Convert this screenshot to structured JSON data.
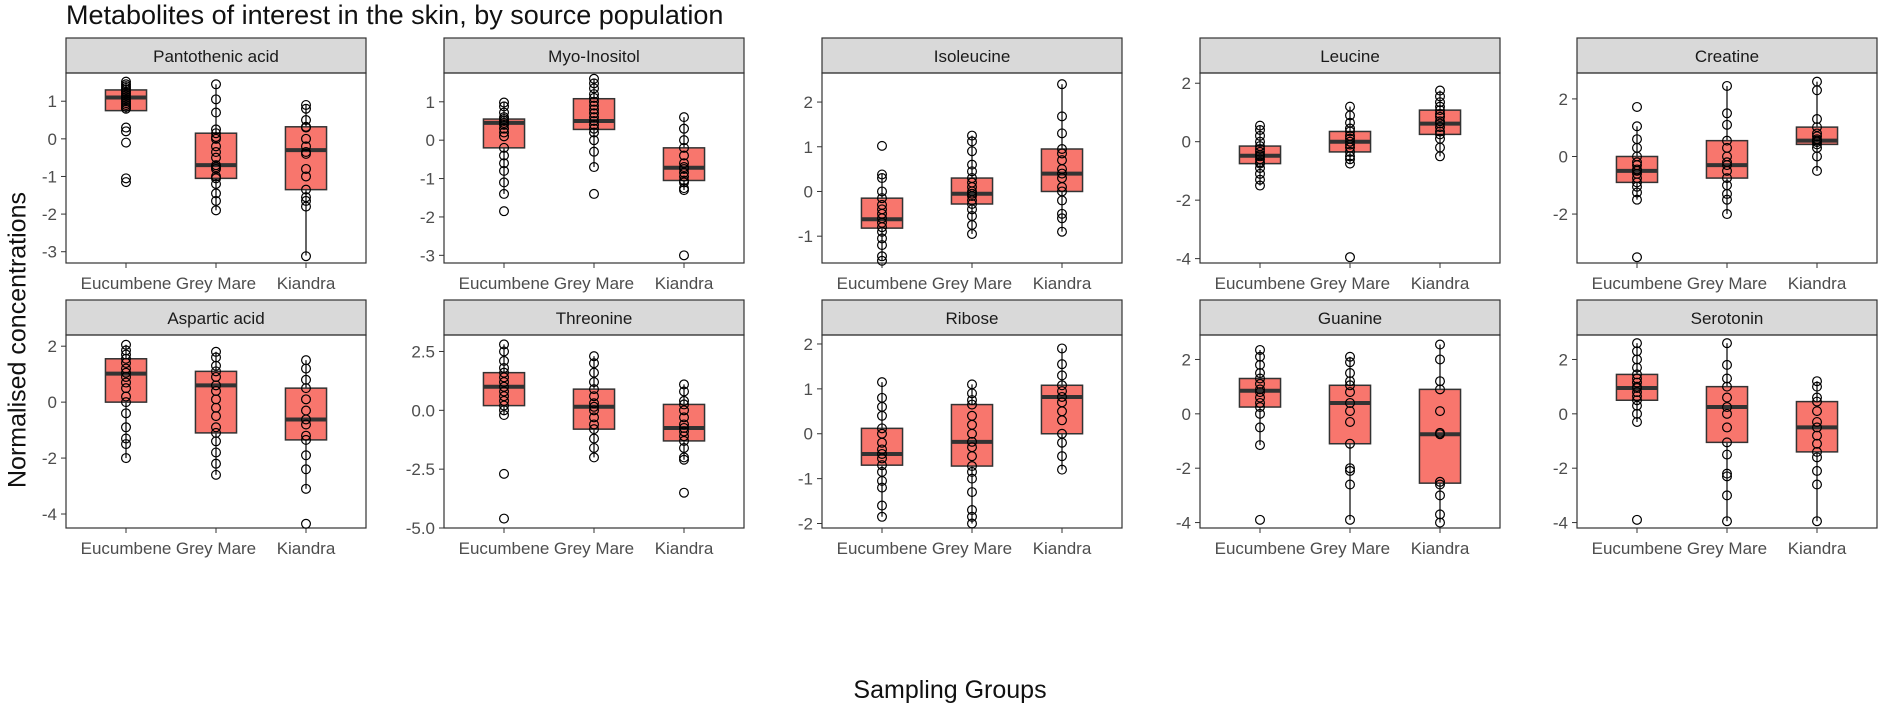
{
  "title": "Metabolites of interest in the skin, by source population",
  "xlabel": "Sampling Groups",
  "ylabel": "Normalised concentrations",
  "colors": {
    "box_fill": "#F8766D",
    "strip_fill": "#D9D9D9",
    "line": "#333333"
  },
  "chart_data": {
    "type": "boxplot",
    "categories": [
      "Eucumbene",
      "Grey Mare",
      "Kiandra"
    ],
    "panels": [
      {
        "name": "Pantothenic acid",
        "ylim": [
          -3.3,
          1.75
        ],
        "yticks": [
          -3,
          -2,
          -1,
          0,
          1
        ],
        "ytick_labels": [
          "-3",
          "-2",
          "-1",
          "0",
          "1"
        ],
        "groups": [
          {
            "q1": 0.75,
            "median": 1.1,
            "q3": 1.3,
            "lo": 0.7,
            "hi": 1.5,
            "points": [
              1.52,
              1.45,
              1.4,
              1.35,
              1.3,
              1.25,
              1.2,
              1.15,
              1.1,
              1.05,
              1.0,
              0.95,
              0.9,
              0.85,
              0.8,
              0.3,
              0.2,
              -0.1,
              -1.05,
              -1.15
            ]
          },
          {
            "q1": -1.05,
            "median": -0.7,
            "q3": 0.15,
            "lo": -1.9,
            "hi": 1.45,
            "points": [
              1.45,
              1.05,
              0.7,
              0.25,
              0.15,
              0.05,
              0.0,
              -0.2,
              -0.35,
              -0.5,
              -0.7,
              -0.75,
              -0.8,
              -1.0,
              -1.05,
              -1.2,
              -1.45,
              -1.65,
              -1.9
            ]
          },
          {
            "q1": -1.35,
            "median": -0.3,
            "q3": 0.32,
            "lo": -3.1,
            "hi": 0.9,
            "points": [
              0.9,
              0.8,
              0.5,
              0.32,
              0.3,
              0.0,
              -0.2,
              -0.35,
              -0.4,
              -0.8,
              -1.0,
              -1.35,
              -1.55,
              -1.65,
              -1.8,
              -3.12
            ]
          }
        ]
      },
      {
        "name": "Myo-Inositol",
        "ylim": [
          -3.2,
          1.75
        ],
        "yticks": [
          -3,
          -2,
          -1,
          0,
          1
        ],
        "ytick_labels": [
          "-3",
          "-2",
          "-1",
          "0",
          "1"
        ],
        "groups": [
          {
            "q1": -0.2,
            "median": 0.45,
            "q3": 0.55,
            "lo": -1.4,
            "hi": 1.0,
            "points": [
              0.98,
              0.88,
              0.72,
              0.6,
              0.55,
              0.5,
              0.45,
              0.4,
              0.3,
              0.2,
              0.1,
              -0.2,
              -0.4,
              -0.6,
              -0.8,
              -1.1,
              -1.4,
              -1.85
            ]
          },
          {
            "q1": 0.28,
            "median": 0.5,
            "q3": 1.08,
            "lo": -0.7,
            "hi": 1.6,
            "points": [
              1.6,
              1.48,
              1.35,
              1.2,
              1.1,
              1.0,
              0.9,
              0.8,
              0.7,
              0.6,
              0.5,
              0.4,
              0.3,
              0.2,
              0.0,
              -0.3,
              -0.7,
              -1.4
            ]
          },
          {
            "q1": -1.05,
            "median": -0.72,
            "q3": -0.2,
            "lo": -1.3,
            "hi": 0.6,
            "points": [
              0.6,
              0.3,
              0.0,
              -0.2,
              -0.4,
              -0.6,
              -0.7,
              -0.75,
              -0.85,
              -0.95,
              -1.05,
              -1.1,
              -1.25,
              -1.3,
              -3.0
            ]
          }
        ]
      },
      {
        "name": "Isoleucine",
        "ylim": [
          -1.6,
          2.65
        ],
        "yticks": [
          -1,
          0,
          1,
          2
        ],
        "ytick_labels": [
          "-1",
          "0",
          "1",
          "2"
        ],
        "groups": [
          {
            "q1": -0.82,
            "median": -0.62,
            "q3": -0.15,
            "lo": -1.55,
            "hi": 0.4,
            "points": [
              1.02,
              0.38,
              0.3,
              0.0,
              -0.15,
              -0.3,
              -0.4,
              -0.5,
              -0.6,
              -0.7,
              -0.8,
              -0.9,
              -1.05,
              -1.2,
              -1.45,
              -1.55
            ]
          },
          {
            "q1": -0.28,
            "median": -0.05,
            "q3": 0.3,
            "lo": -0.95,
            "hi": 1.25,
            "points": [
              1.25,
              1.12,
              0.9,
              0.6,
              0.45,
              0.3,
              0.2,
              0.1,
              0.0,
              -0.05,
              -0.1,
              -0.2,
              -0.28,
              -0.4,
              -0.55,
              -0.75,
              -0.95
            ]
          },
          {
            "q1": 0.0,
            "median": 0.4,
            "q3": 0.95,
            "lo": -0.9,
            "hi": 2.4,
            "points": [
              2.4,
              1.68,
              1.3,
              0.95,
              0.85,
              0.7,
              0.5,
              0.4,
              0.3,
              0.1,
              0.0,
              -0.2,
              -0.5,
              -0.6,
              -0.9
            ]
          }
        ]
      },
      {
        "name": "Leucine",
        "ylim": [
          -4.15,
          2.35
        ],
        "yticks": [
          -4,
          -2,
          0,
          2
        ],
        "ytick_labels": [
          "-4",
          "-2",
          "0",
          "2"
        ],
        "groups": [
          {
            "q1": -0.75,
            "median": -0.48,
            "q3": -0.15,
            "lo": -1.5,
            "hi": 0.55,
            "points": [
              0.55,
              0.4,
              0.2,
              0.0,
              -0.15,
              -0.25,
              -0.35,
              -0.45,
              -0.5,
              -0.6,
              -0.7,
              -0.75,
              -0.9,
              -1.1,
              -1.3,
              -1.5
            ]
          },
          {
            "q1": -0.35,
            "median": 0.0,
            "q3": 0.35,
            "lo": -0.75,
            "hi": 1.2,
            "points": [
              1.2,
              0.9,
              0.65,
              0.45,
              0.35,
              0.2,
              0.1,
              0.0,
              -0.1,
              -0.2,
              -0.35,
              -0.5,
              -0.6,
              -0.75,
              -3.95
            ]
          },
          {
            "q1": 0.25,
            "median": 0.62,
            "q3": 1.08,
            "lo": -0.5,
            "hi": 1.75,
            "points": [
              1.75,
              1.55,
              1.35,
              1.2,
              1.08,
              0.95,
              0.85,
              0.7,
              0.62,
              0.5,
              0.35,
              0.25,
              0.1,
              -0.2,
              -0.5
            ]
          }
        ]
      },
      {
        "name": "Creatine",
        "ylim": [
          -3.7,
          2.9
        ],
        "yticks": [
          -2,
          0,
          2
        ],
        "ytick_labels": [
          "-2",
          "0",
          "2"
        ],
        "groups": [
          {
            "q1": -0.9,
            "median": -0.5,
            "q3": 0.0,
            "lo": -1.5,
            "hi": 1.05,
            "points": [
              1.72,
              1.05,
              0.6,
              0.3,
              0.0,
              -0.2,
              -0.3,
              -0.45,
              -0.5,
              -0.6,
              -0.75,
              -0.9,
              -1.05,
              -1.25,
              -1.5,
              -3.5
            ]
          },
          {
            "q1": -0.75,
            "median": -0.3,
            "q3": 0.55,
            "lo": -2.0,
            "hi": 2.45,
            "points": [
              2.45,
              1.5,
              1.1,
              0.55,
              0.3,
              0.0,
              -0.2,
              -0.3,
              -0.5,
              -0.75,
              -1.0,
              -1.3,
              -1.5,
              -2.0
            ]
          },
          {
            "q1": 0.42,
            "median": 0.55,
            "q3": 1.02,
            "lo": -0.5,
            "hi": 2.6,
            "points": [
              2.6,
              2.3,
              1.3,
              1.02,
              0.8,
              0.7,
              0.6,
              0.55,
              0.5,
              0.42,
              0.3,
              0.0,
              -0.5
            ]
          }
        ]
      },
      {
        "name": "Aspartic acid",
        "ylim": [
          -4.5,
          2.4
        ],
        "yticks": [
          -4,
          -2,
          0,
          2
        ],
        "ytick_labels": [
          "-4",
          "-2",
          "0",
          "2"
        ],
        "groups": [
          {
            "q1": 0.0,
            "median": 1.02,
            "q3": 1.55,
            "lo": -2.0,
            "hi": 2.05,
            "points": [
              2.05,
              1.85,
              1.7,
              1.55,
              1.4,
              1.2,
              1.05,
              0.9,
              0.7,
              0.5,
              0.2,
              0.0,
              -0.4,
              -0.9,
              -1.3,
              -1.5,
              -2.0
            ]
          },
          {
            "q1": -1.1,
            "median": 0.6,
            "q3": 1.1,
            "lo": -2.6,
            "hi": 1.8,
            "points": [
              1.8,
              1.6,
              1.3,
              1.1,
              0.9,
              0.6,
              0.4,
              0.1,
              -0.2,
              -0.5,
              -0.9,
              -1.1,
              -1.4,
              -1.8,
              -2.2,
              -2.6
            ]
          },
          {
            "q1": -1.35,
            "median": -0.62,
            "q3": 0.5,
            "lo": -3.1,
            "hi": 1.5,
            "points": [
              1.5,
              1.2,
              0.8,
              0.5,
              0.1,
              -0.3,
              -0.62,
              -0.8,
              -1.2,
              -1.35,
              -1.9,
              -2.4,
              -3.1,
              -4.35
            ]
          }
        ]
      },
      {
        "name": "Threonine",
        "ylim": [
          -5.0,
          3.2
        ],
        "yticks": [
          -5.0,
          -2.5,
          0.0,
          2.5
        ],
        "ytick_labels": [
          "-5.0",
          "-2.5",
          "0.0",
          "2.5"
        ],
        "groups": [
          {
            "q1": 0.2,
            "median": 1.0,
            "q3": 1.6,
            "lo": -0.2,
            "hi": 2.8,
            "points": [
              2.8,
              2.5,
              2.1,
              1.8,
              1.6,
              1.4,
              1.2,
              1.0,
              0.8,
              0.6,
              0.4,
              0.2,
              0.0,
              -0.2,
              -2.7,
              -4.6
            ]
          },
          {
            "q1": -0.8,
            "median": 0.15,
            "q3": 0.9,
            "lo": -2.0,
            "hi": 2.3,
            "points": [
              2.3,
              2.0,
              1.6,
              1.2,
              0.9,
              0.6,
              0.3,
              0.15,
              0.0,
              -0.3,
              -0.6,
              -0.8,
              -1.2,
              -1.6,
              -2.0
            ]
          },
          {
            "q1": -1.3,
            "median": -0.75,
            "q3": 0.25,
            "lo": -2.1,
            "hi": 1.1,
            "points": [
              1.1,
              0.8,
              0.4,
              0.25,
              0.0,
              -0.3,
              -0.6,
              -0.75,
              -0.9,
              -1.1,
              -1.3,
              -1.6,
              -2.0,
              -2.1,
              -3.5
            ]
          }
        ]
      },
      {
        "name": "Ribose",
        "ylim": [
          -2.1,
          2.2
        ],
        "yticks": [
          -2,
          -1,
          0,
          1,
          2
        ],
        "ytick_labels": [
          "-2",
          "-1",
          "0",
          "1",
          "2"
        ],
        "groups": [
          {
            "q1": -0.7,
            "median": -0.45,
            "q3": 0.12,
            "lo": -1.85,
            "hi": 1.15,
            "points": [
              1.15,
              0.8,
              0.6,
              0.4,
              0.12,
              0.0,
              -0.2,
              -0.35,
              -0.45,
              -0.55,
              -0.7,
              -0.85,
              -1.05,
              -1.2,
              -1.6,
              -1.85
            ]
          },
          {
            "q1": -0.72,
            "median": -0.18,
            "q3": 0.65,
            "lo": -2.0,
            "hi": 1.1,
            "points": [
              1.1,
              0.9,
              0.75,
              0.65,
              0.4,
              0.2,
              0.0,
              -0.18,
              -0.3,
              -0.5,
              -0.72,
              -0.85,
              -1.0,
              -1.3,
              -1.7,
              -1.85,
              -2.0
            ]
          },
          {
            "q1": 0.0,
            "median": 0.82,
            "q3": 1.08,
            "lo": -0.8,
            "hi": 1.9,
            "points": [
              1.9,
              1.55,
              1.3,
              1.08,
              0.95,
              0.82,
              0.7,
              0.5,
              0.3,
              0.0,
              -0.2,
              -0.5,
              -0.8
            ]
          }
        ]
      },
      {
        "name": "Guanine",
        "ylim": [
          -4.2,
          2.9
        ],
        "yticks": [
          -4,
          -2,
          0,
          2
        ],
        "ytick_labels": [
          "-4",
          "-2",
          "0",
          "2"
        ],
        "groups": [
          {
            "q1": 0.25,
            "median": 0.85,
            "q3": 1.3,
            "lo": -1.15,
            "hi": 2.35,
            "points": [
              2.35,
              2.1,
              1.8,
              1.5,
              1.3,
              1.1,
              0.9,
              0.8,
              0.6,
              0.4,
              0.25,
              0.0,
              -0.5,
              -1.15,
              -3.9
            ]
          },
          {
            "q1": -1.1,
            "median": 0.4,
            "q3": 1.05,
            "lo": -3.9,
            "hi": 2.1,
            "points": [
              2.1,
              1.9,
              1.5,
              1.2,
              1.05,
              0.8,
              0.4,
              0.1,
              -0.3,
              -1.1,
              -2.0,
              -2.1,
              -2.6,
              -3.9
            ]
          },
          {
            "q1": -2.55,
            "median": -0.75,
            "q3": 0.9,
            "lo": -4.0,
            "hi": 2.55,
            "points": [
              2.55,
              2.0,
              1.2,
              0.9,
              0.1,
              -0.7,
              -0.75,
              -2.5,
              -2.6,
              -3.0,
              -3.7,
              -4.0
            ]
          }
        ]
      },
      {
        "name": "Serotonin",
        "ylim": [
          -4.2,
          2.9
        ],
        "yticks": [
          -4,
          -2,
          0,
          2
        ],
        "ytick_labels": [
          "-4",
          "-2",
          "0",
          "2"
        ],
        "groups": [
          {
            "q1": 0.5,
            "median": 0.95,
            "q3": 1.45,
            "lo": -0.3,
            "hi": 2.6,
            "points": [
              2.6,
              2.3,
              2.0,
              1.7,
              1.45,
              1.3,
              1.15,
              1.0,
              0.95,
              0.8,
              0.65,
              0.5,
              0.3,
              0.0,
              -0.3,
              -3.9
            ]
          },
          {
            "q1": -1.05,
            "median": 0.25,
            "q3": 1.0,
            "lo": -3.95,
            "hi": 2.6,
            "points": [
              2.6,
              1.8,
              1.3,
              1.0,
              0.6,
              0.25,
              0.0,
              -0.5,
              -1.05,
              -1.5,
              -2.2,
              -2.3,
              -3.0,
              -3.95
            ]
          },
          {
            "q1": -1.4,
            "median": -0.5,
            "q3": 0.45,
            "lo": -3.95,
            "hi": 1.2,
            "points": [
              1.2,
              1.0,
              0.6,
              0.45,
              0.1,
              -0.3,
              -0.5,
              -0.8,
              -1.1,
              -1.4,
              -1.6,
              -2.1,
              -2.6,
              -3.95
            ]
          }
        ]
      }
    ]
  }
}
